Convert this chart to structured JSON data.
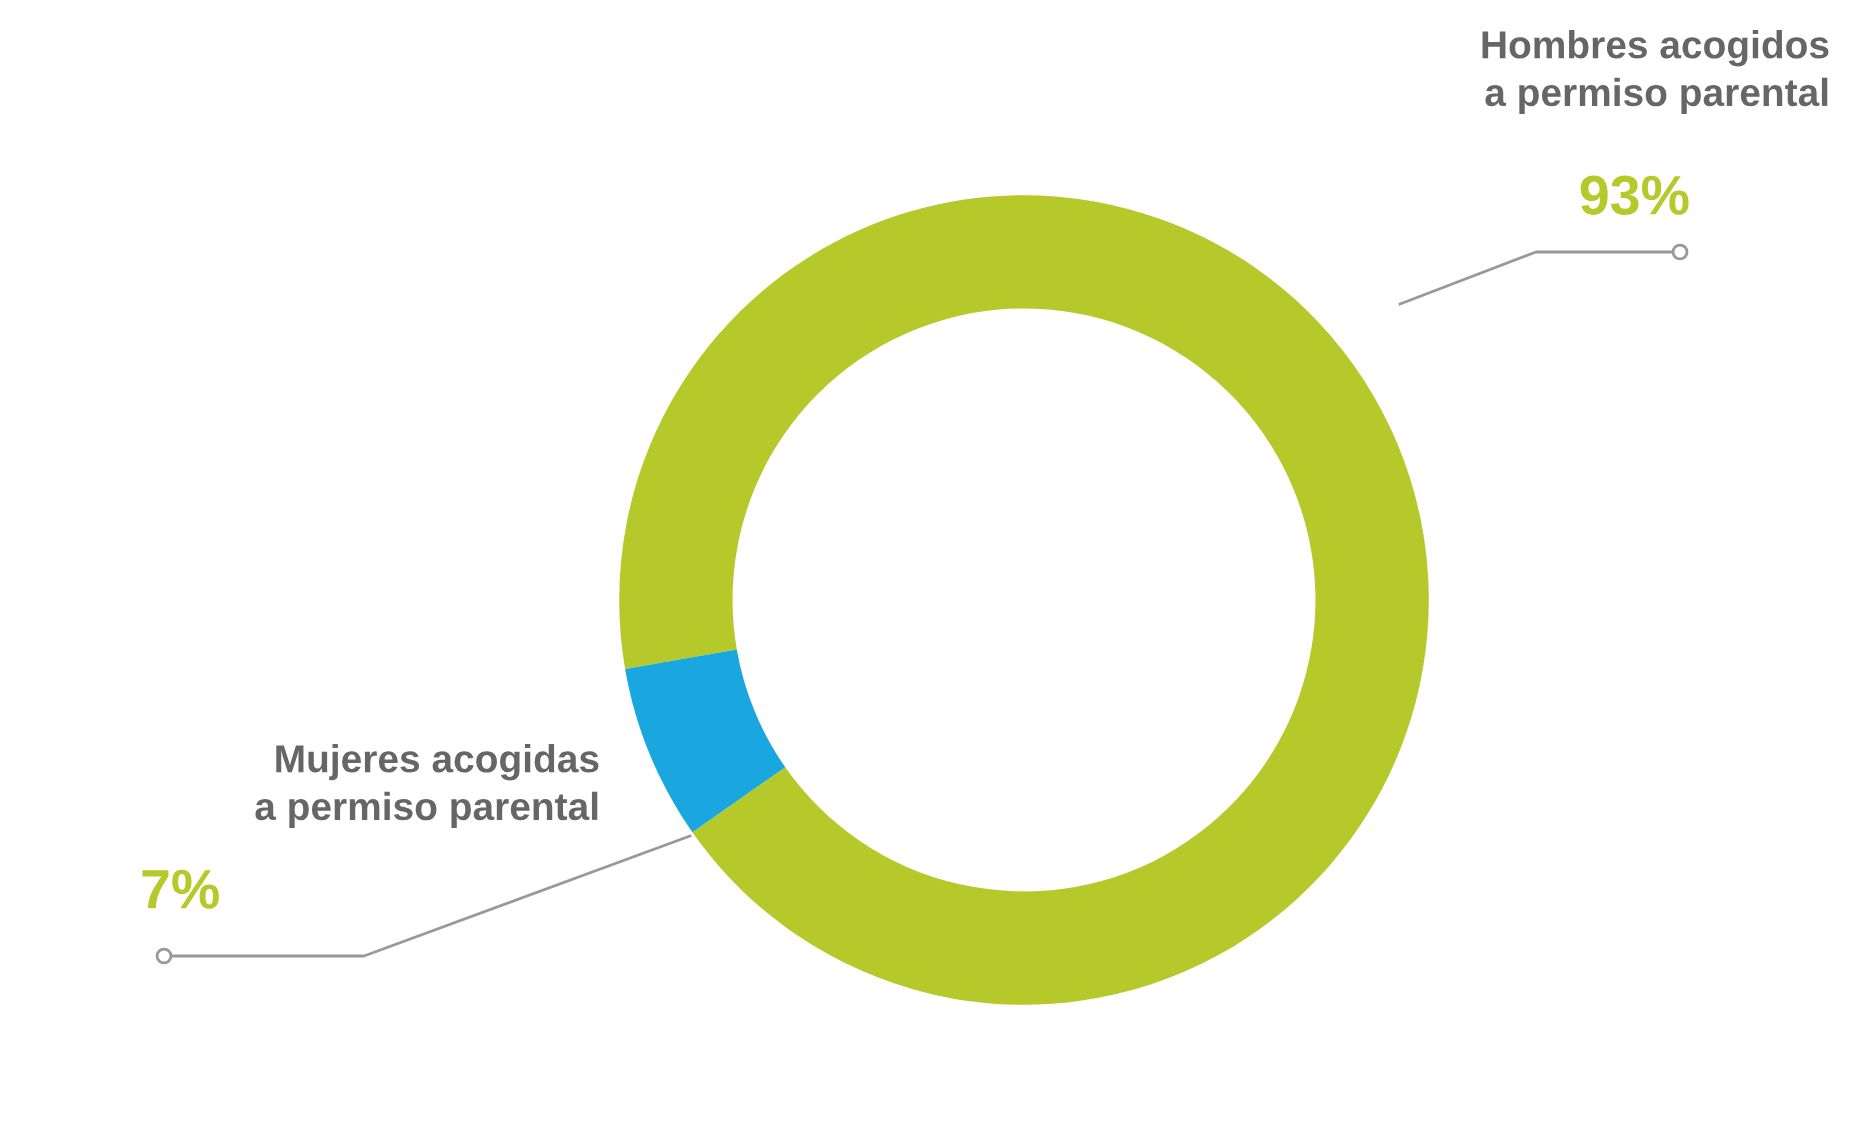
{
  "chart_data": {
    "type": "donut",
    "categories": [
      "Hombres acogidos\na permiso parental",
      "Mujeres acogidas\na permiso parental"
    ],
    "values": [
      93,
      7
    ],
    "colors": [
      "#b5c92b",
      "#1aa6df"
    ],
    "value_labels": [
      "93%",
      "7%"
    ],
    "legend": false
  }
}
